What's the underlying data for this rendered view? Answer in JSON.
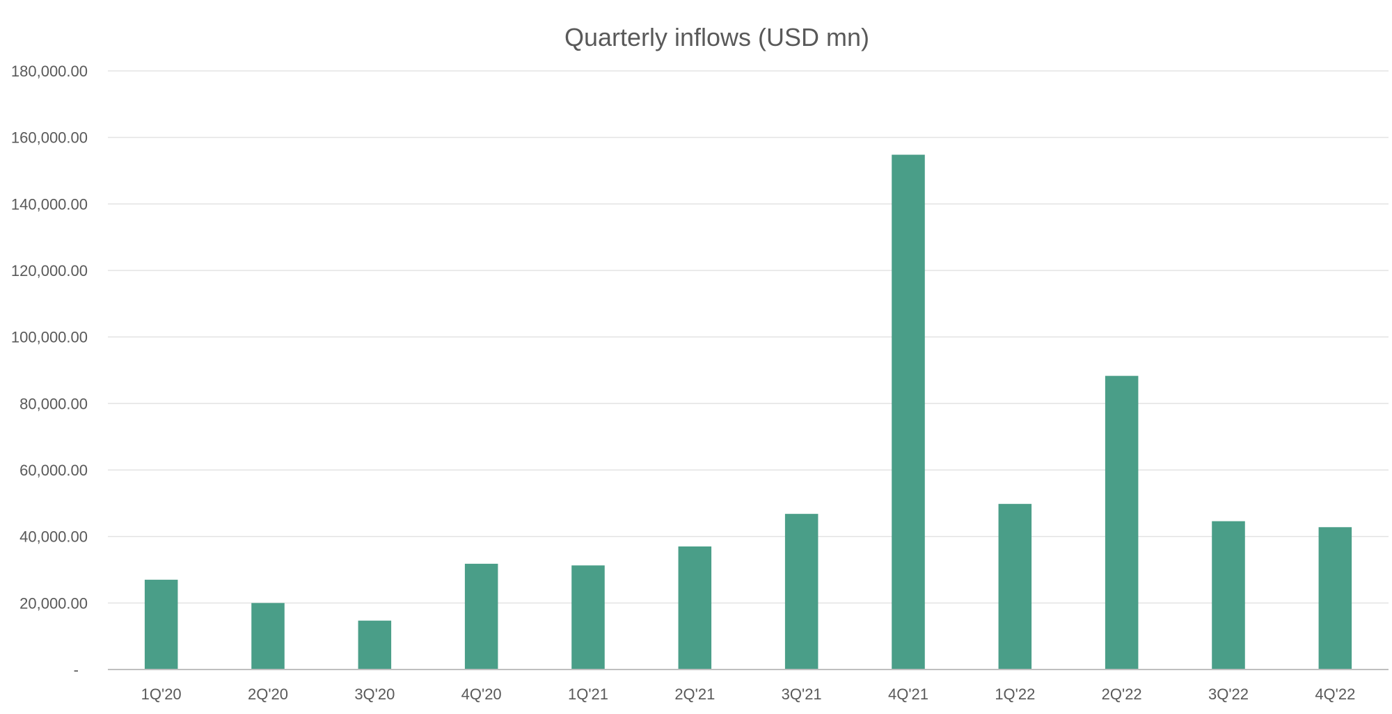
{
  "chart_data": {
    "type": "bar",
    "title": "Quarterly inflows (USD mn)",
    "xlabel": "",
    "ylabel": "",
    "categories": [
      "1Q'20",
      "2Q'20",
      "3Q'20",
      "4Q'20",
      "1Q'21",
      "2Q'21",
      "3Q'21",
      "4Q'21",
      "1Q'22",
      "2Q'22",
      "3Q'22",
      "4Q'22"
    ],
    "values": [
      27000,
      20000,
      14700,
      31800,
      31300,
      37000,
      46800,
      154800,
      49800,
      88300,
      44600,
      42800
    ],
    "ylim": [
      0,
      180000
    ],
    "y_ticks": [
      0,
      20000,
      40000,
      60000,
      80000,
      100000,
      120000,
      140000,
      160000,
      180000
    ],
    "y_tick_labels": [
      "-",
      "20,000.00",
      "40,000.00",
      "60,000.00",
      "80,000.00",
      "100,000.00",
      "120,000.00",
      "140,000.00",
      "160,000.00",
      "180,000.00"
    ],
    "grid": true,
    "legend": "none",
    "bar_color": "#4a9e88"
  }
}
